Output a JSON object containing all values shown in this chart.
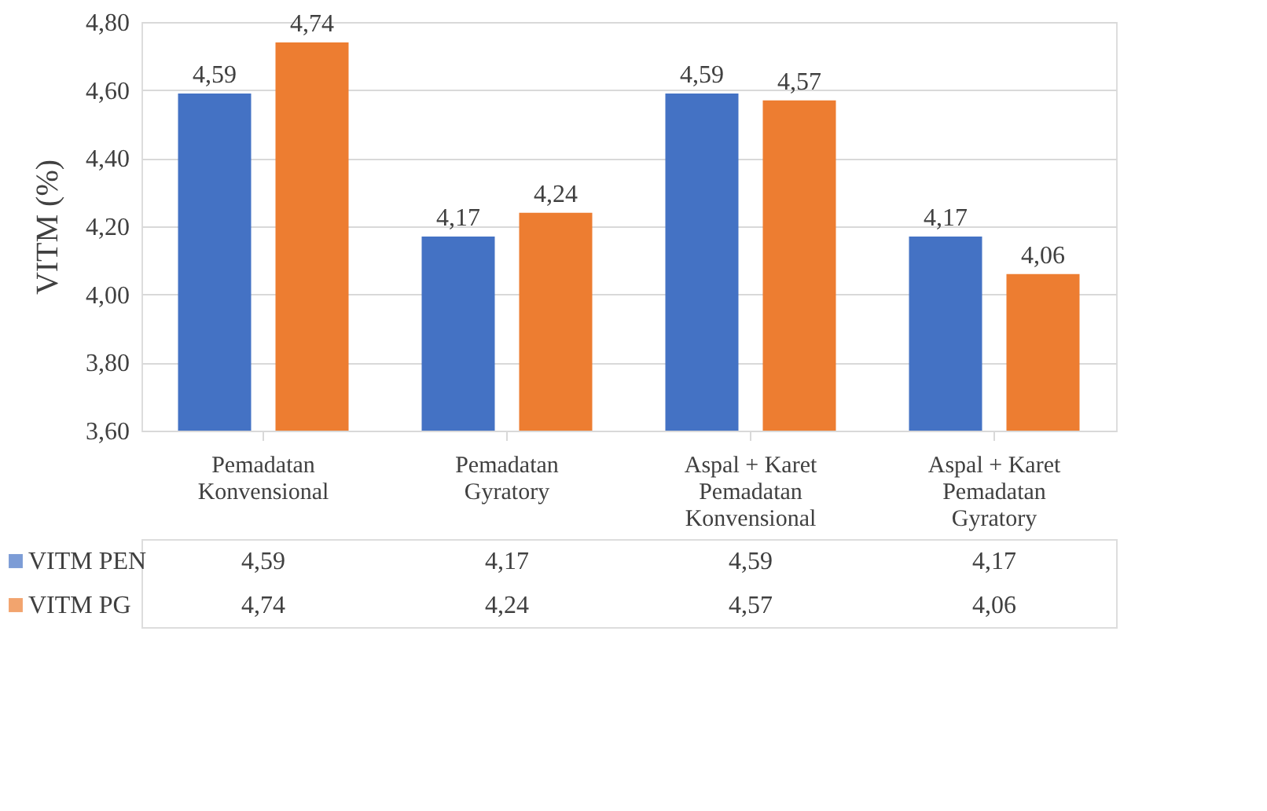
{
  "chart_data": {
    "type": "bar",
    "ylabel": "VITM (%)",
    "categories": [
      "Pemadatan\nKonvensional",
      "Pemadatan\nGyratory",
      "Aspal + Karet\nPemadatan\nKonvensional",
      "Aspal + Karet\nPemadatan\nGyratory"
    ],
    "series": [
      {
        "name": "VITM PEN",
        "color": "#4472c4",
        "values": [
          4.59,
          4.17,
          4.59,
          4.17
        ],
        "value_labels": [
          "4,59",
          "4,17",
          "4,59",
          "4,17"
        ]
      },
      {
        "name": "VITM PG",
        "color": "#ed7d31",
        "values": [
          4.74,
          4.24,
          4.57,
          4.06
        ],
        "value_labels": [
          "4,74",
          "4,24",
          "4,57",
          "4,06"
        ]
      }
    ],
    "ylim": [
      3.6,
      4.8
    ],
    "yticks": [
      {
        "value": 3.6,
        "label": "3,60"
      },
      {
        "value": 3.8,
        "label": "3,80"
      },
      {
        "value": 4.0,
        "label": "4,00"
      },
      {
        "value": 4.2,
        "label": "4,20"
      },
      {
        "value": 4.4,
        "label": "4,40"
      },
      {
        "value": 4.6,
        "label": "4,60"
      },
      {
        "value": 4.8,
        "label": "4,80"
      }
    ],
    "grid": "y",
    "legend": "bottom"
  }
}
